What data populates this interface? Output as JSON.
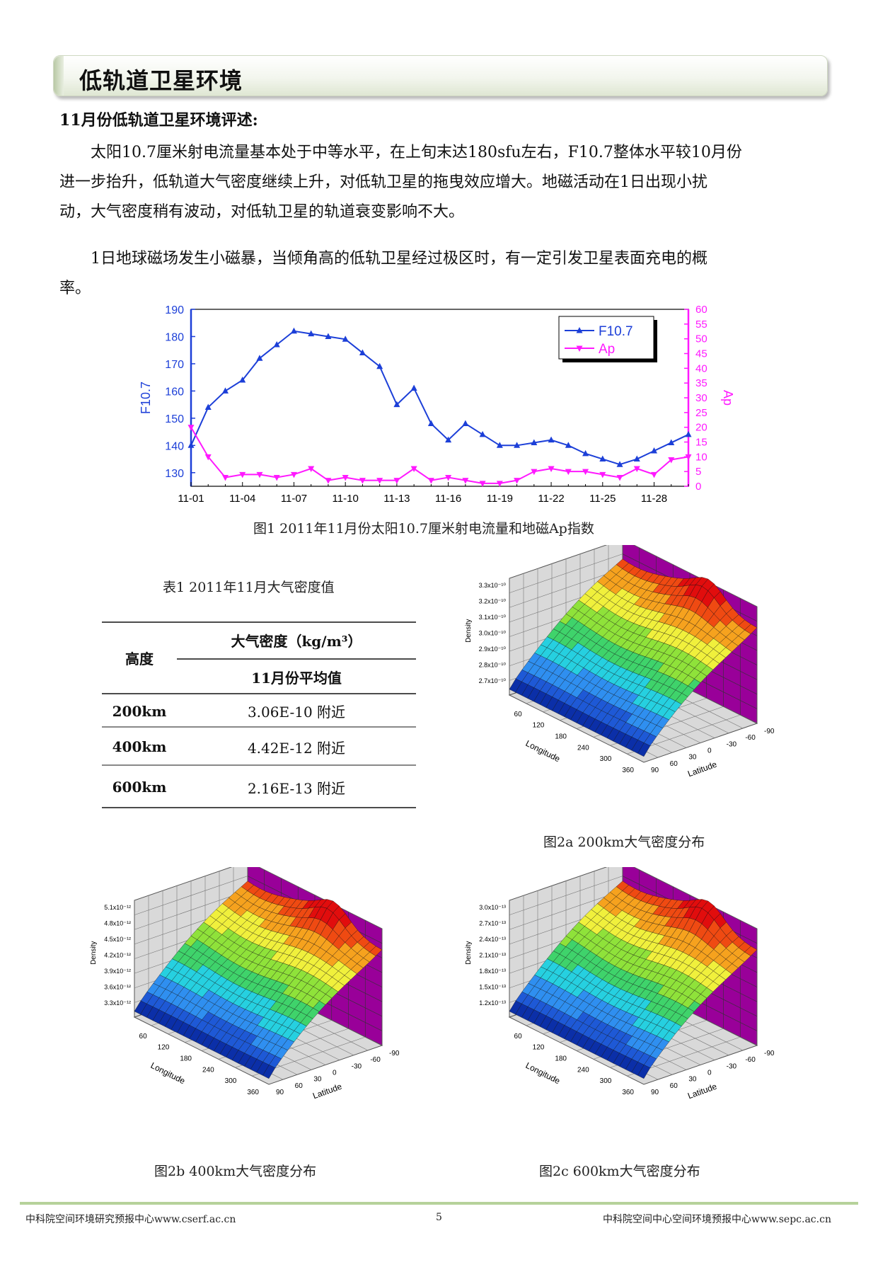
{
  "section": {
    "title": "低轨道卫星环境"
  },
  "subtitle": "11月份低轨道卫星环境评述:",
  "paragraphs": [
    [
      "太阳10.7厘米射电流量基本处于中等水平，在上旬末达180sfu左右，F10.7整体水平较10月份",
      "进一步抬升，低轨道大气密度继续上升，对低轨卫星的拖曳效应增大。地磁活动在1日出现小扰",
      "动，大气密度稍有波动，对低轨卫星的轨道衰变影响不大。"
    ],
    [
      "1日地球磁场发生小磁暴，当倾角高的低轨卫星经过极区时，有一定引发卫星表面充电的概",
      "率。"
    ]
  ],
  "colors": {
    "f107": "#1c3fd8",
    "ap": "#ff19ff",
    "header_rule": "#b6d29a"
  },
  "chart_data": {
    "type": "line",
    "categories": [
      "11-01",
      "11-02",
      "11-03",
      "11-04",
      "11-05",
      "11-06",
      "11-07",
      "11-08",
      "11-09",
      "11-10",
      "11-11",
      "11-12",
      "11-13",
      "11-14",
      "11-15",
      "11-16",
      "11-17",
      "11-18",
      "11-19",
      "11-20",
      "11-21",
      "11-22",
      "11-23",
      "11-24",
      "11-25",
      "11-26",
      "11-27",
      "11-28",
      "11-29",
      "11-30"
    ],
    "x_tick_labels": [
      "11-01",
      "11-04",
      "11-07",
      "11-10",
      "11-13",
      "11-16",
      "11-19",
      "11-22",
      "11-25",
      "11-28"
    ],
    "series": [
      {
        "name": "F10.7",
        "axis": "left",
        "marker": "triangle-up",
        "values": [
          140,
          154,
          160,
          164,
          172,
          177,
          182,
          181,
          180,
          179,
          174,
          169,
          155,
          161,
          148,
          142,
          148,
          144,
          140,
          140,
          141,
          142,
          140,
          137,
          135,
          133,
          135,
          138,
          141,
          144
        ]
      },
      {
        "name": "Ap",
        "axis": "right",
        "marker": "triangle-down",
        "values": [
          20,
          10,
          3,
          4,
          4,
          3,
          4,
          6,
          2,
          3,
          2,
          2,
          2,
          6,
          2,
          3,
          2,
          1,
          1,
          2,
          5,
          6,
          5,
          5,
          4,
          3,
          6,
          4,
          9,
          10
        ]
      }
    ],
    "ylabel": "F10.7",
    "y2label": "Ap",
    "ylim": [
      125,
      190
    ],
    "yticks": [
      130,
      140,
      150,
      160,
      170,
      180,
      190
    ],
    "y2lim": [
      0,
      60
    ],
    "y2ticks": [
      0,
      5,
      10,
      15,
      20,
      25,
      30,
      35,
      40,
      45,
      50,
      55,
      60
    ],
    "legend_position": "top-right"
  },
  "figure1_caption": "图1 2011年11月份太阳10.7厘米射电流量和地磁Ap指数",
  "table": {
    "caption": "表1 2011年11月大气密度值",
    "header_height": "高度",
    "header_density": "大气密度（kg/m³）",
    "header_avg": "11月份平均值",
    "rows": [
      {
        "height": "200km",
        "value": "3.06E-10 附近"
      },
      {
        "height": "400km",
        "value": "4.42E-12 附近"
      },
      {
        "height": "600km",
        "value": "2.16E-13 附近"
      }
    ]
  },
  "plots": [
    {
      "id": "2a",
      "caption": "图2a 200km大气密度分布",
      "zlabel": "Density",
      "zticks": [
        "3.3x10⁻¹⁰",
        "3.2x10⁻¹⁰",
        "3.1x10⁻¹⁰",
        "3.0x10⁻¹⁰",
        "2.9x10⁻¹⁰",
        "2.8x10⁻¹⁰",
        "2.7x10⁻¹⁰"
      ],
      "xlabel": "Longitude",
      "xticks": [
        "60",
        "120",
        "180",
        "240",
        "300",
        "360"
      ],
      "ylabel": "Latitude",
      "yticks": [
        "90",
        "60",
        "30",
        "0",
        "-30",
        "-60",
        "-90"
      ]
    },
    {
      "id": "2b",
      "caption": "图2b      400km大气密度分布",
      "zlabel": "Density",
      "zticks": [
        "5.1x10⁻¹²",
        "4.8x10⁻¹²",
        "4.5x10⁻¹²",
        "4.2x10⁻¹²",
        "3.9x10⁻¹²",
        "3.6x10⁻¹²",
        "3.3x10⁻¹²"
      ],
      "xlabel": "Longitude",
      "xticks": [
        "60",
        "120",
        "180",
        "240",
        "300",
        "360"
      ],
      "ylabel": "Latitude",
      "yticks": [
        "90",
        "60",
        "30",
        "0",
        "-30",
        "-60",
        "-90"
      ]
    },
    {
      "id": "2c",
      "caption": "图2c  600km大气密度分布",
      "zlabel": "Density",
      "zticks": [
        "3.0x10⁻¹³",
        "2.7x10⁻¹³",
        "2.4x10⁻¹³",
        "2.1x10⁻¹³",
        "1.8x10⁻¹³",
        "1.5x10⁻¹³",
        "1.2x10⁻¹³"
      ],
      "xlabel": "Longitude",
      "xticks": [
        "60",
        "120",
        "180",
        "240",
        "300",
        "360"
      ],
      "ylabel": "Latitude",
      "yticks": [
        "90",
        "60",
        "30",
        "0",
        "-30",
        "-60",
        "-90"
      ]
    }
  ],
  "footer": {
    "left": "中科院空间环境研究预报中心www.cserf.ac.cn",
    "page": "5",
    "right": "中科院空间中心空间环境预报中心www.sepc.ac.cn"
  }
}
